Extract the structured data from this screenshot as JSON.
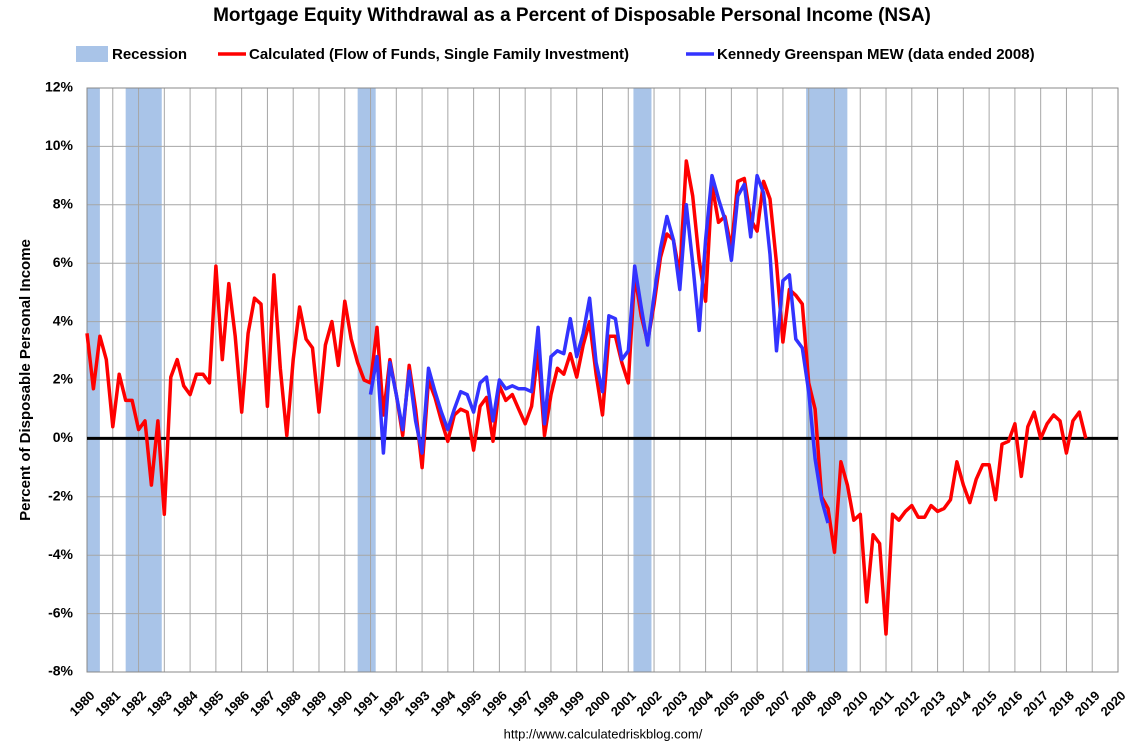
{
  "chart_data": {
    "type": "line",
    "title": "Mortgage Equity Withdrawal as a Percent of Disposable Personal Income (NSA)",
    "y_label": "Percent of Disposable Personal Income",
    "source": "http://www.calculatedriskblog.com/",
    "shaded_name": "Recession",
    "shaded_color": "#a9c4e8",
    "shaded_ranges": [
      [
        1980.0,
        1980.5
      ],
      [
        1981.5,
        1982.9
      ],
      [
        1990.5,
        1991.2
      ],
      [
        2001.2,
        2001.9
      ],
      [
        2007.9,
        2009.5
      ]
    ],
    "xlim": [
      1980,
      2020
    ],
    "xticks": [
      1980,
      1981,
      1982,
      1983,
      1984,
      1985,
      1986,
      1987,
      1988,
      1989,
      1990,
      1991,
      1992,
      1993,
      1994,
      1995,
      1996,
      1997,
      1998,
      1999,
      2000,
      2001,
      2002,
      2003,
      2004,
      2005,
      2006,
      2007,
      2008,
      2009,
      2010,
      2011,
      2012,
      2013,
      2014,
      2015,
      2016,
      2017,
      2018,
      2019,
      2020
    ],
    "ylim": [
      -8,
      12
    ],
    "yticks": [
      {
        "value": -8,
        "label": "-8%"
      },
      {
        "value": -6,
        "label": "-6%"
      },
      {
        "value": -4,
        "label": "-4%"
      },
      {
        "value": -2,
        "label": "-2%"
      },
      {
        "value": 0,
        "label": "0%"
      },
      {
        "value": 2,
        "label": "2%"
      },
      {
        "value": 4,
        "label": "4%"
      },
      {
        "value": 6,
        "label": "6%"
      },
      {
        "value": 8,
        "label": "8%"
      },
      {
        "value": 10,
        "label": "10%"
      },
      {
        "value": 12,
        "label": "12%"
      }
    ],
    "grid": true,
    "x": [
      1980,
      1980.25,
      1980.5,
      1980.75,
      1981,
      1981.25,
      1981.5,
      1981.75,
      1982,
      1982.25,
      1982.5,
      1982.75,
      1983,
      1983.25,
      1983.5,
      1983.75,
      1984,
      1984.25,
      1984.5,
      1984.75,
      1985,
      1985.25,
      1985.5,
      1985.75,
      1986,
      1986.25,
      1986.5,
      1986.75,
      1987,
      1987.25,
      1987.5,
      1987.75,
      1988,
      1988.25,
      1988.5,
      1988.75,
      1989,
      1989.25,
      1989.5,
      1989.75,
      1990,
      1990.25,
      1990.5,
      1990.75,
      1991,
      1991.25,
      1991.5,
      1991.75,
      1992,
      1992.25,
      1992.5,
      1992.75,
      1993,
      1993.25,
      1993.5,
      1993.75,
      1994,
      1994.25,
      1994.5,
      1994.75,
      1995,
      1995.25,
      1995.5,
      1995.75,
      1996,
      1996.25,
      1996.5,
      1996.75,
      1997,
      1997.25,
      1997.5,
      1997.75,
      1998,
      1998.25,
      1998.5,
      1998.75,
      1999,
      1999.25,
      1999.5,
      1999.75,
      2000,
      2000.25,
      2000.5,
      2000.75,
      2001,
      2001.25,
      2001.5,
      2001.75,
      2002,
      2002.25,
      2002.5,
      2002.75,
      2003,
      2003.25,
      2003.5,
      2003.75,
      2004,
      2004.25,
      2004.5,
      2004.75,
      2005,
      2005.25,
      2005.5,
      2005.75,
      2006,
      2006.25,
      2006.5,
      2006.75,
      2007,
      2007.25,
      2007.5,
      2007.75,
      2008,
      2008.25,
      2008.5,
      2008.75,
      2009,
      2009.25,
      2009.5,
      2009.75,
      2010,
      2010.25,
      2010.5,
      2010.75,
      2011,
      2011.25,
      2011.5,
      2011.75,
      2012,
      2012.25,
      2012.5,
      2012.75,
      2013,
      2013.25,
      2013.5,
      2013.75,
      2014,
      2014.25,
      2014.5,
      2014.75,
      2015,
      2015.25,
      2015.5,
      2015.75,
      2016,
      2016.25,
      2016.5,
      2016.75,
      2017,
      2017.25,
      2017.5,
      2017.75,
      2018,
      2018.25,
      2018.5,
      2018.75
    ],
    "series": [
      {
        "name": "Calculated (Flow of Funds, Single Family Investment)",
        "color": "#ff0000",
        "values": [
          3.6,
          1.7,
          3.5,
          2.7,
          0.4,
          2.2,
          1.3,
          1.3,
          0.3,
          0.6,
          -1.6,
          0.6,
          -2.6,
          2.1,
          2.7,
          1.8,
          1.5,
          2.2,
          2.2,
          1.9,
          5.9,
          2.7,
          5.3,
          3.5,
          0.9,
          3.6,
          4.8,
          4.6,
          1.1,
          5.6,
          2.4,
          0.1,
          2.7,
          4.5,
          3.4,
          3.1,
          0.9,
          3.2,
          4.0,
          2.5,
          4.7,
          3.4,
          2.6,
          2.0,
          1.9,
          3.8,
          0.8,
          2.7,
          1.5,
          0.1,
          2.5,
          1.0,
          -1.0,
          2.0,
          1.4,
          0.6,
          -0.1,
          0.8,
          1.0,
          0.9,
          -0.4,
          1.1,
          1.4,
          -0.1,
          1.8,
          1.3,
          1.5,
          1.0,
          0.5,
          1.1,
          3.0,
          0.1,
          1.5,
          2.4,
          2.2,
          2.9,
          2.1,
          3.2,
          4.0,
          2.2,
          0.8,
          3.5,
          3.5,
          2.6,
          1.9,
          5.6,
          4.2,
          3.3,
          4.6,
          6.2,
          7.0,
          6.8,
          5.6,
          9.5,
          8.3,
          6.1,
          4.7,
          8.7,
          7.4,
          7.6,
          6.5,
          8.8,
          8.9,
          7.5,
          7.1,
          8.8,
          8.2,
          6.0,
          3.3,
          5.1,
          4.9,
          4.6,
          1.9,
          1.0,
          -2.0,
          -2.4,
          -3.9,
          -0.8,
          -1.6,
          -2.8,
          -2.6,
          -5.6,
          -3.3,
          -3.6,
          -6.7,
          -2.6,
          -2.8,
          -2.5,
          -2.3,
          -2.7,
          -2.7,
          -2.3,
          -2.5,
          -2.4,
          -2.1,
          -0.8,
          -1.6,
          -2.2,
          -1.4,
          -0.9,
          -0.9,
          -2.1,
          -0.2,
          -0.1,
          0.5,
          -1.3,
          0.4,
          0.9,
          0.0,
          0.5,
          0.8,
          0.6,
          -0.5,
          0.6,
          0.9,
          0.0
        ]
      },
      {
        "name": "Kennedy Greenspan MEW (data ended 2008)",
        "color": "#3333ff",
        "values": [
          null,
          null,
          null,
          null,
          null,
          null,
          null,
          null,
          null,
          null,
          null,
          null,
          null,
          null,
          null,
          null,
          null,
          null,
          null,
          null,
          null,
          null,
          null,
          null,
          null,
          null,
          null,
          null,
          null,
          null,
          null,
          null,
          null,
          null,
          null,
          null,
          null,
          null,
          null,
          null,
          null,
          null,
          null,
          null,
          1.5,
          2.8,
          -0.5,
          2.6,
          1.5,
          0.3,
          2.3,
          0.6,
          -0.5,
          2.4,
          1.6,
          0.9,
          0.3,
          1.0,
          1.6,
          1.5,
          0.9,
          1.9,
          2.1,
          0.6,
          2.0,
          1.7,
          1.8,
          1.7,
          1.7,
          1.6,
          3.8,
          0.5,
          2.8,
          3.0,
          2.9,
          4.1,
          2.8,
          3.6,
          4.8,
          2.6,
          1.6,
          4.2,
          4.1,
          2.7,
          3.0,
          5.9,
          4.5,
          3.2,
          4.9,
          6.5,
          7.6,
          6.8,
          5.1,
          8.0,
          6.0,
          3.7,
          6.8,
          9.0,
          8.2,
          7.5,
          6.1,
          8.3,
          8.7,
          6.9,
          9.0,
          8.4,
          6.3,
          3.0,
          5.4,
          5.6,
          3.4,
          3.1,
          1.6,
          -0.7,
          -2.1,
          -2.9,
          null,
          null,
          null,
          null,
          null,
          null,
          null,
          null,
          null,
          null,
          null,
          null,
          null,
          null,
          null,
          null,
          null,
          null,
          null,
          null,
          null,
          null,
          null,
          null,
          null,
          null,
          null,
          null,
          null,
          null,
          null,
          null,
          null,
          null,
          null,
          null,
          null,
          null,
          null,
          null
        ]
      }
    ]
  }
}
